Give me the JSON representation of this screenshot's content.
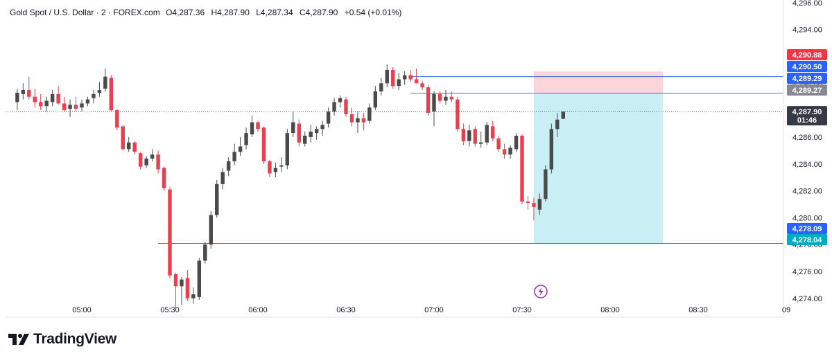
{
  "header": {
    "symbol": "Gold Spot / U.S. Dollar · 2 · FOREX.com",
    "open_label": "O",
    "open": "4,287.36",
    "high_label": "H",
    "high": "4,287.90",
    "low_label": "L",
    "low": "4,287.34",
    "close_label": "C",
    "close": "4,287.90",
    "change": "+0.54 (+0.01%)"
  },
  "brand": {
    "name": "TradingView"
  },
  "colors": {
    "up": "#4a4a4a",
    "down": "#e8404e",
    "line": "#3d6de0",
    "profit": "#c9eff4",
    "stop": "#fbd5da"
  },
  "chart_data": {
    "type": "candlestick",
    "interval_minutes": 2,
    "ylim": [
      4272.6,
      4296.2
    ],
    "y_ticks": [
      4274,
      4276,
      4278,
      4280,
      4282,
      4284,
      4286,
      4288,
      4290,
      4292,
      4294,
      4296
    ],
    "y_tick_labels": [
      "4,274.00",
      "4,276.00",
      "4,278.00",
      "4,280.00",
      "4,282.00",
      "4,284.00",
      "4,286.00",
      "4,288.00",
      "4,290.00",
      "4,292.00",
      "4,294.00",
      "4,296.00"
    ],
    "x_ticks": [
      "05:00",
      "05:30",
      "06:00",
      "06:30",
      "07:00",
      "07:30",
      "08:00",
      "08:30",
      "09"
    ],
    "first_candle_time": "04:38",
    "candles": [
      [
        4288.6,
        4289.6,
        4288.0,
        4289.3
      ],
      [
        4289.2,
        4290.0,
        4288.8,
        4289.5
      ],
      [
        4289.5,
        4290.5,
        4288.8,
        4289.0
      ],
      [
        4289.0,
        4289.6,
        4288.2,
        4288.6
      ],
      [
        4288.6,
        4289.2,
        4288.0,
        4288.3
      ],
      [
        4288.3,
        4289.0,
        4287.9,
        4288.7
      ],
      [
        4288.6,
        4289.5,
        4288.3,
        4289.2
      ],
      [
        4289.2,
        4289.8,
        4288.4,
        4288.5
      ],
      [
        4288.5,
        4289.0,
        4287.9,
        4288.0
      ],
      [
        4288.1,
        4288.8,
        4287.5,
        4288.4
      ],
      [
        4288.4,
        4289.0,
        4287.9,
        4288.1
      ],
      [
        4288.2,
        4288.8,
        4287.9,
        4288.5
      ],
      [
        4288.5,
        4289.0,
        4288.3,
        4288.8
      ],
      [
        4288.9,
        4289.5,
        4288.5,
        4289.2
      ],
      [
        4289.3,
        4290.1,
        4289.0,
        4289.5
      ],
      [
        4289.6,
        4291.1,
        4289.4,
        4290.5
      ],
      [
        4290.4,
        4290.6,
        4287.9,
        4288.0
      ],
      [
        4288.0,
        4288.1,
        4286.5,
        4286.7
      ],
      [
        4286.8,
        4286.9,
        4285.0,
        4285.1
      ],
      [
        4285.1,
        4286.0,
        4284.9,
        4285.6
      ],
      [
        4285.6,
        4285.7,
        4284.7,
        4284.9
      ],
      [
        4284.8,
        4284.9,
        4283.6,
        4283.8
      ],
      [
        4283.9,
        4284.6,
        4283.7,
        4284.4
      ],
      [
        4284.4,
        4285.1,
        4284.2,
        4284.7
      ],
      [
        4284.7,
        4285.0,
        4283.3,
        4283.6
      ],
      [
        4283.7,
        4283.8,
        4282.0,
        4282.2
      ],
      [
        4282.1,
        4282.3,
        4275.5,
        4275.7
      ],
      [
        4275.8,
        4275.9,
        4273.2,
        4274.9
      ],
      [
        4274.9,
        4275.6,
        4273.5,
        4275.4
      ],
      [
        4275.5,
        4276.1,
        4273.8,
        4274.0
      ],
      [
        4274.0,
        4274.8,
        4273.6,
        4274.3
      ],
      [
        4274.1,
        4277.0,
        4273.9,
        4276.8
      ],
      [
        4276.8,
        4278.2,
        4276.6,
        4278.0
      ],
      [
        4278.0,
        4280.5,
        4277.7,
        4280.2
      ],
      [
        4280.2,
        4282.8,
        4280.0,
        4282.5
      ],
      [
        4282.5,
        4283.7,
        4282.1,
        4283.4
      ],
      [
        4283.5,
        4284.5,
        4283.1,
        4284.2
      ],
      [
        4284.2,
        4285.5,
        4283.9,
        4284.9
      ],
      [
        4284.9,
        4286.0,
        4284.6,
        4285.3
      ],
      [
        4285.4,
        4286.7,
        4285.1,
        4286.3
      ],
      [
        4286.2,
        4287.6,
        4286.0,
        4287.1
      ],
      [
        4287.1,
        4287.2,
        4286.4,
        4286.6
      ],
      [
        4286.7,
        4286.8,
        4284.0,
        4284.2
      ],
      [
        4284.2,
        4284.3,
        4283.0,
        4283.3
      ],
      [
        4283.4,
        4284.1,
        4283.0,
        4283.7
      ],
      [
        4283.8,
        4284.5,
        4283.4,
        4283.9
      ],
      [
        4283.9,
        4286.6,
        4283.6,
        4286.3
      ],
      [
        4286.3,
        4287.9,
        4286.0,
        4287.1
      ],
      [
        4287.0,
        4287.3,
        4285.3,
        4285.6
      ],
      [
        4285.5,
        4286.4,
        4285.3,
        4286.1
      ],
      [
        4286.0,
        4286.9,
        4285.6,
        4286.4
      ],
      [
        4286.3,
        4286.8,
        4285.8,
        4286.6
      ],
      [
        4286.6,
        4287.2,
        4286.1,
        4286.9
      ],
      [
        4287.0,
        4288.2,
        4286.7,
        4287.9
      ],
      [
        4287.9,
        4288.9,
        4287.6,
        4288.6
      ],
      [
        4288.6,
        4289.1,
        4288.2,
        4288.9
      ],
      [
        4288.8,
        4289.0,
        4287.5,
        4287.7
      ],
      [
        4287.7,
        4288.2,
        4286.8,
        4287.1
      ],
      [
        4287.1,
        4287.9,
        4286.3,
        4287.4
      ],
      [
        4287.4,
        4287.8,
        4286.5,
        4287.1
      ],
      [
        4287.2,
        4288.5,
        4287.0,
        4288.2
      ],
      [
        4288.2,
        4289.8,
        4288.0,
        4289.4
      ],
      [
        4289.4,
        4290.4,
        4289.1,
        4290.0
      ],
      [
        4290.0,
        4291.4,
        4289.7,
        4291.0
      ],
      [
        4291.0,
        4291.2,
        4289.6,
        4289.8
      ],
      [
        4289.8,
        4290.8,
        4289.5,
        4290.3
      ],
      [
        4290.3,
        4290.9,
        4289.9,
        4290.6
      ],
      [
        4290.6,
        4291.0,
        4290.1,
        4290.3
      ],
      [
        4290.3,
        4291.1,
        4290.0,
        4290.0
      ],
      [
        4290.0,
        4290.2,
        4289.5,
        4289.7
      ],
      [
        4289.7,
        4289.9,
        4287.6,
        4287.8
      ],
      [
        4287.9,
        4289.4,
        4286.8,
        4289.2
      ],
      [
        4289.2,
        4289.4,
        4288.5,
        4288.7
      ],
      [
        4288.7,
        4289.5,
        4288.4,
        4289.0
      ],
      [
        4289.0,
        4289.4,
        4288.6,
        4288.8
      ],
      [
        4288.8,
        4289.0,
        4286.4,
        4286.6
      ],
      [
        4286.6,
        4287.0,
        4285.4,
        4285.7
      ],
      [
        4285.7,
        4286.9,
        4285.3,
        4286.5
      ],
      [
        4286.6,
        4286.8,
        4285.3,
        4285.5
      ],
      [
        4285.5,
        4286.4,
        4285.2,
        4285.6
      ],
      [
        4285.6,
        4287.1,
        4285.4,
        4286.9
      ],
      [
        4286.8,
        4287.2,
        4285.7,
        4285.9
      ],
      [
        4285.9,
        4286.1,
        4284.9,
        4285.1
      ],
      [
        4285.1,
        4285.5,
        4284.4,
        4284.7
      ],
      [
        4284.7,
        4285.4,
        4284.4,
        4285.2
      ],
      [
        4285.1,
        4286.3,
        4284.9,
        4286.1
      ],
      [
        4286.1,
        4286.2,
        4281.0,
        4281.2
      ],
      [
        4281.2,
        4281.6,
        4280.6,
        4281.1
      ],
      [
        4281.1,
        4281.5,
        4279.8,
        4280.8
      ],
      [
        4280.6,
        4281.8,
        4280.2,
        4281.4
      ],
      [
        4281.4,
        4283.9,
        4281.2,
        4283.6
      ],
      [
        4283.6,
        4287.0,
        4283.3,
        4286.6
      ],
      [
        4286.6,
        4287.8,
        4286.0,
        4287.3
      ],
      [
        4287.36,
        4287.9,
        4287.34,
        4287.9
      ]
    ],
    "levels": [
      {
        "name": "stop",
        "value": 4290.88,
        "label": "4,290.88"
      },
      {
        "name": "line-upper",
        "value": 4290.5,
        "label": "4,290.50"
      },
      {
        "name": "high-marker",
        "value": 4289.29,
        "label": "4,289.29"
      },
      {
        "name": "entry",
        "value": 4289.27,
        "label": "4,289.27"
      },
      {
        "name": "current-price",
        "value": 4287.9,
        "label": "4,287.90",
        "countdown": "01:46"
      },
      {
        "name": "line-lower",
        "value": 4278.09,
        "label": "4,278.09"
      },
      {
        "name": "target",
        "value": 4278.04,
        "label": "4,278.04"
      }
    ],
    "position": {
      "entry": 4289.27,
      "stop": 4290.88,
      "target": 4278.04,
      "start_time": "07:34",
      "end_time": "08:18"
    }
  }
}
